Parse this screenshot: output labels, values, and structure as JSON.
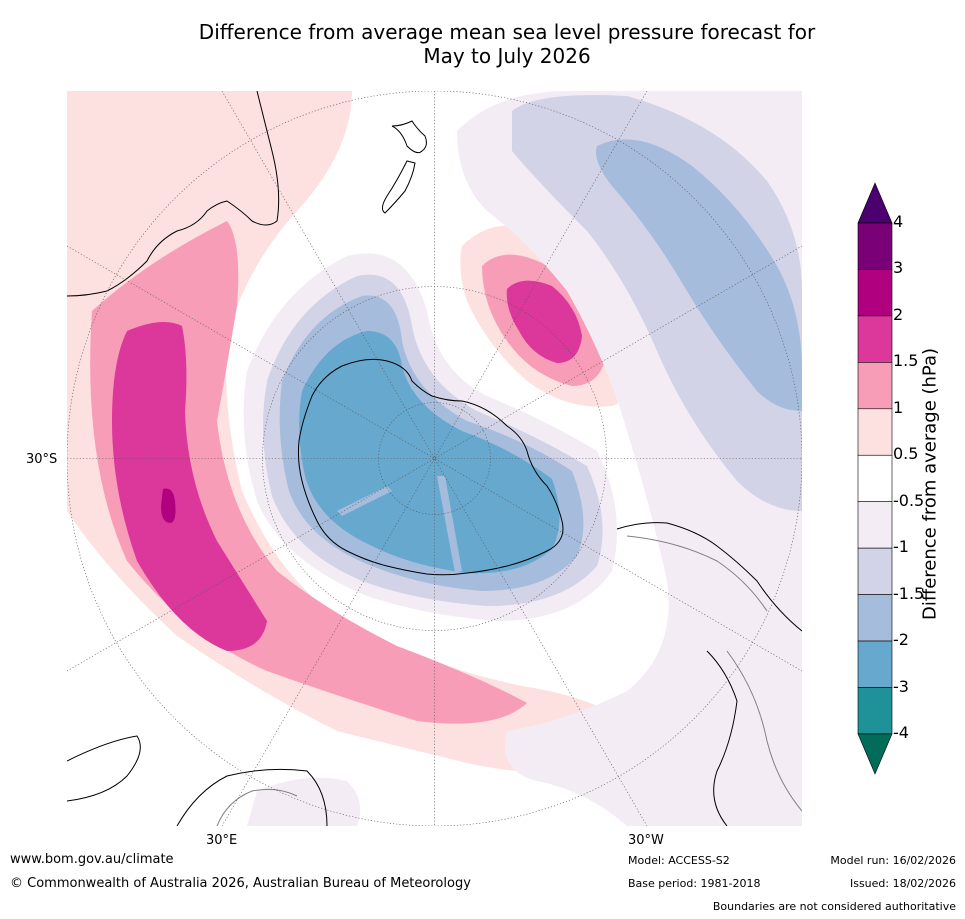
{
  "title_line1": "Difference from average mean sea level pressure forecast for",
  "title_line2": "May to July 2026",
  "map": {
    "projection": "South polar stereographic",
    "lat_label_30s": "30°S",
    "lon_label_30e": "30°E",
    "lon_label_30w": "30°W"
  },
  "colorbar": {
    "label": "Difference from average (hPa)",
    "levels": [
      "4",
      "3",
      "2",
      "1.5",
      "1",
      "0.5",
      "-0.5",
      "-1",
      "-1.5",
      "-2",
      "-3",
      "-4"
    ],
    "colors": {
      "gt4": "#4b0070",
      "3_4": "#7a0078",
      "2_3": "#b0007f",
      "1.5_2": "#dc379a",
      "1_1.5": "#f89db7",
      "0.5_1": "#fde0e0",
      "n0.5_0.5": "#ffffff",
      "n1_n0.5": "#f3ecf5",
      "n1.5_n1": "#d2d3e7",
      "n2_n1.5": "#a6bcdc",
      "n3_n2": "#66a8ce",
      "n4_n3": "#1e9199",
      "lt_n4": "#016c5a"
    }
  },
  "footer": {
    "url": "www.bom.gov.au/climate",
    "copyright": "© Commonwealth of Australia 2026, Australian Bureau of Meteorology",
    "model": "Model: ACCESS-S2",
    "base_period": "Base period: 1981-2018",
    "model_run": "Model run: 16/02/2026",
    "issued": "Issued: 18/02/2026",
    "disclaimer": "Boundaries are not considered authoritative"
  }
}
